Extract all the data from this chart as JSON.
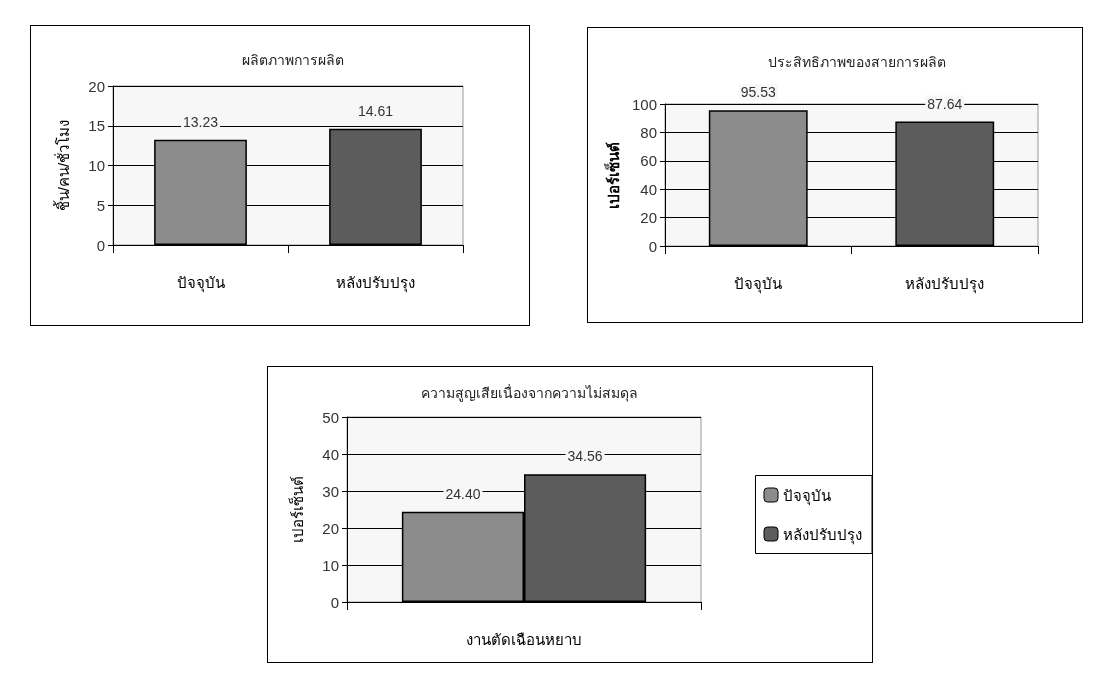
{
  "chart_data": [
    {
      "type": "bar",
      "title": "ผลิตภาพการผลิต",
      "ylabel": "ชิ้น/คน/ชั่วโมง",
      "categories": [
        "ปัจจุบัน",
        "หลังปรับปรุง"
      ],
      "values": [
        13.23,
        14.61
      ],
      "value_labels": [
        "13.23",
        "14.61"
      ],
      "colors": [
        "#8c8c8c",
        "#5c5c5c"
      ],
      "ylim": [
        0,
        20
      ],
      "yticks": [
        0,
        5,
        10,
        15,
        20
      ],
      "grid": "y",
      "legend": false
    },
    {
      "type": "bar",
      "title": "ประสิทธิภาพของสายการผลิต",
      "ylabel": "เปอร์เซ็นต์",
      "categories": [
        "ปัจจุบัน",
        "หลังปรับปรุง"
      ],
      "values": [
        95.53,
        87.64
      ],
      "value_labels": [
        "95.53",
        "87.64"
      ],
      "colors": [
        "#8c8c8c",
        "#5c5c5c"
      ],
      "ylim": [
        0,
        100
      ],
      "yticks": [
        0,
        20,
        40,
        60,
        80,
        100
      ],
      "grid": "y",
      "legend": false
    },
    {
      "type": "bar",
      "title": "ความสูญเสียเนื่องจากความไม่สมดุล",
      "ylabel": "เปอร์เซ็นต์",
      "categories": [
        "งานตัดเฉือนหยาบ"
      ],
      "series": [
        {
          "name": "ปัจจุบัน",
          "color": "#8c8c8c",
          "values": [
            24.4
          ],
          "value_labels": [
            "24.40"
          ]
        },
        {
          "name": "หลังปรับปรุง",
          "color": "#5c5c5c",
          "values": [
            34.56
          ],
          "value_labels": [
            "34.56"
          ]
        }
      ],
      "ylim": [
        0,
        50
      ],
      "yticks": [
        0,
        10,
        20,
        30,
        40,
        50
      ],
      "grid": "y",
      "legend": "right"
    }
  ]
}
